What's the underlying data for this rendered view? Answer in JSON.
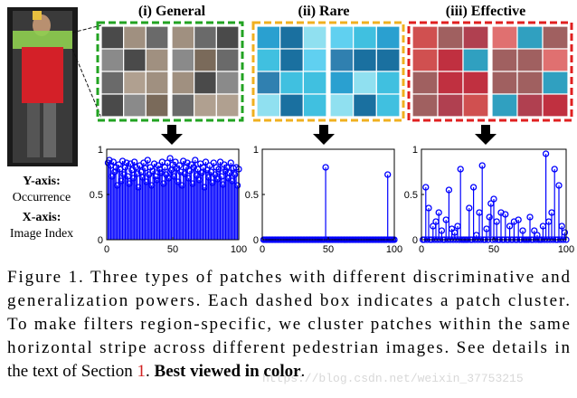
{
  "figure": {
    "panels": [
      {
        "title": "(i) General",
        "color": "#22a322"
      },
      {
        "title": "(ii) Rare",
        "color": "#f0b020"
      },
      {
        "title": "(iii) Effective",
        "color": "#e02020"
      }
    ],
    "side_labels": [
      "Y-axis:",
      "Occurrence",
      "X-axis:",
      "Image Index"
    ]
  },
  "chart_data": [
    {
      "type": "stem",
      "color": "#0000ff",
      "xlim": [
        0,
        100
      ],
      "ylim": [
        0,
        1
      ],
      "xticks": [
        0,
        50,
        100
      ],
      "yticks": [
        0,
        0.5,
        1
      ],
      "x": [
        1,
        2,
        3,
        4,
        5,
        6,
        7,
        8,
        9,
        10,
        11,
        12,
        13,
        14,
        15,
        16,
        17,
        18,
        19,
        20,
        21,
        22,
        23,
        24,
        25,
        26,
        27,
        28,
        29,
        30,
        31,
        32,
        33,
        34,
        35,
        36,
        37,
        38,
        39,
        40,
        41,
        42,
        43,
        44,
        45,
        46,
        47,
        48,
        49,
        50,
        51,
        52,
        53,
        54,
        55,
        56,
        57,
        58,
        59,
        60,
        61,
        62,
        63,
        64,
        65,
        66,
        67,
        68,
        69,
        70,
        71,
        72,
        73,
        74,
        75,
        76,
        77,
        78,
        79,
        80,
        81,
        82,
        83,
        84,
        85,
        86,
        87,
        88,
        89,
        90,
        91,
        92,
        93,
        94,
        95,
        96,
        97,
        98,
        99,
        100
      ],
      "values": [
        0.85,
        0.88,
        0.82,
        0.7,
        0.86,
        0.75,
        0.8,
        0.6,
        0.83,
        0.78,
        0.65,
        0.87,
        0.72,
        0.8,
        0.85,
        0.7,
        0.62,
        0.84,
        0.77,
        0.68,
        0.86,
        0.8,
        0.73,
        0.58,
        0.82,
        0.75,
        0.69,
        0.85,
        0.79,
        0.64,
        0.88,
        0.72,
        0.8,
        0.6,
        0.76,
        0.84,
        0.7,
        0.66,
        0.82,
        0.78,
        0.74,
        0.86,
        0.62,
        0.8,
        0.72,
        0.85,
        0.68,
        0.9,
        0.77,
        0.83,
        0.7,
        0.86,
        0.79,
        0.64,
        0.82,
        0.75,
        0.6,
        0.87,
        0.73,
        0.8,
        0.85,
        0.68,
        0.76,
        0.83,
        0.62,
        0.8,
        0.88,
        0.71,
        0.78,
        0.66,
        0.84,
        0.74,
        0.8,
        0.58,
        0.86,
        0.77,
        0.69,
        0.82,
        0.75,
        0.63,
        0.85,
        0.72,
        0.8,
        0.67,
        0.78,
        0.86,
        0.7,
        0.61,
        0.83,
        0.76,
        0.8,
        0.68,
        0.74,
        0.85,
        0.65,
        0.79,
        0.72,
        0.8,
        0.6,
        0.78
      ]
    },
    {
      "type": "stem",
      "color": "#0000ff",
      "xlim": [
        0,
        100
      ],
      "ylim": [
        0,
        1
      ],
      "xticks": [
        0,
        50,
        100
      ],
      "yticks": [
        0,
        0.5,
        1
      ],
      "x": [
        1,
        2,
        3,
        4,
        5,
        6,
        7,
        8,
        9,
        10,
        11,
        12,
        13,
        14,
        15,
        16,
        17,
        18,
        19,
        20,
        21,
        22,
        23,
        24,
        25,
        26,
        27,
        28,
        29,
        30,
        31,
        32,
        33,
        34,
        35,
        36,
        37,
        38,
        39,
        40,
        41,
        42,
        43,
        44,
        45,
        46,
        47,
        48,
        49,
        50,
        51,
        52,
        53,
        54,
        55,
        56,
        57,
        58,
        59,
        60,
        61,
        62,
        63,
        64,
        65,
        66,
        67,
        68,
        69,
        70,
        71,
        72,
        73,
        74,
        75,
        76,
        77,
        78,
        79,
        80,
        81,
        82,
        83,
        84,
        85,
        86,
        87,
        88,
        89,
        90,
        91,
        92,
        93,
        94,
        95,
        96,
        97,
        98,
        99,
        100
      ],
      "values": [
        0,
        0,
        0,
        0,
        0,
        0,
        0,
        0,
        0,
        0,
        0,
        0,
        0,
        0,
        0,
        0,
        0,
        0,
        0,
        0,
        0,
        0,
        0,
        0,
        0,
        0,
        0,
        0,
        0,
        0,
        0,
        0,
        0,
        0,
        0,
        0,
        0,
        0,
        0,
        0,
        0,
        0,
        0,
        0,
        0,
        0,
        0,
        0.8,
        0,
        0,
        0,
        0,
        0,
        0,
        0,
        0,
        0,
        0,
        0,
        0,
        0,
        0,
        0,
        0,
        0,
        0,
        0,
        0,
        0,
        0,
        0,
        0,
        0,
        0,
        0,
        0,
        0,
        0,
        0,
        0,
        0,
        0,
        0,
        0,
        0,
        0,
        0,
        0,
        0,
        0,
        0,
        0,
        0,
        0,
        0.72,
        0,
        0,
        0,
        0,
        0
      ]
    },
    {
      "type": "stem",
      "color": "#0000ff",
      "xlim": [
        0,
        100
      ],
      "ylim": [
        0,
        1
      ],
      "xticks": [
        0,
        50,
        100
      ],
      "yticks": [
        0,
        0.5,
        1
      ],
      "x": [
        1,
        2,
        3,
        4,
        5,
        6,
        7,
        8,
        9,
        10,
        11,
        12,
        13,
        14,
        15,
        16,
        17,
        18,
        19,
        20,
        21,
        22,
        23,
        24,
        25,
        26,
        27,
        28,
        29,
        30,
        31,
        32,
        33,
        34,
        35,
        36,
        37,
        38,
        39,
        40,
        41,
        42,
        43,
        44,
        45,
        46,
        47,
        48,
        49,
        50,
        51,
        52,
        53,
        54,
        55,
        56,
        57,
        58,
        59,
        60,
        61,
        62,
        63,
        64,
        65,
        66,
        67,
        68,
        69,
        70,
        71,
        72,
        73,
        74,
        75,
        76,
        77,
        78,
        79,
        80,
        81,
        82,
        83,
        84,
        85,
        86,
        87,
        88,
        89,
        90,
        91,
        92,
        93,
        94,
        95,
        96,
        97,
        98,
        99,
        100
      ],
      "values": [
        0,
        0,
        0.58,
        0,
        0.35,
        0,
        0,
        0.15,
        0,
        0.2,
        0,
        0.3,
        0,
        0.1,
        0,
        0,
        0.22,
        0,
        0.55,
        0,
        0.12,
        0,
        0.08,
        0,
        0.15,
        0,
        0.78,
        0,
        0,
        0,
        0,
        0,
        0.35,
        0,
        0,
        0.58,
        0,
        0.05,
        0,
        0.3,
        0,
        0.82,
        0,
        0,
        0.12,
        0,
        0.25,
        0.4,
        0,
        0.45,
        0,
        0.2,
        0,
        0,
        0.3,
        0,
        0,
        0.28,
        0,
        0,
        0.15,
        0,
        0,
        0.2,
        0,
        0,
        0.22,
        0,
        0,
        0.1,
        0,
        0,
        0,
        0,
        0.25,
        0,
        0,
        0.1,
        0,
        0.05,
        0,
        0,
        0,
        0.15,
        0,
        0.95,
        0,
        0.2,
        0,
        0.3,
        0,
        0.78,
        0,
        0,
        0.6,
        0,
        0.15,
        0,
        0.08,
        0
      ]
    }
  ],
  "caption": {
    "lines": [
      "Figure 1. Three types of patches with different discriminative and",
      "generalization powers. Each dashed box indicates a patch cluster.",
      "To make filters region-specific, we cluster patches within the same",
      "horizontal stripe across different pedestrian images. See details in"
    ],
    "last_line": [
      "the text of Section ",
      "1",
      ". ",
      "Best viewed in color",
      "."
    ]
  },
  "watermark": "https://blog.csdn.net/weixin_37753215"
}
